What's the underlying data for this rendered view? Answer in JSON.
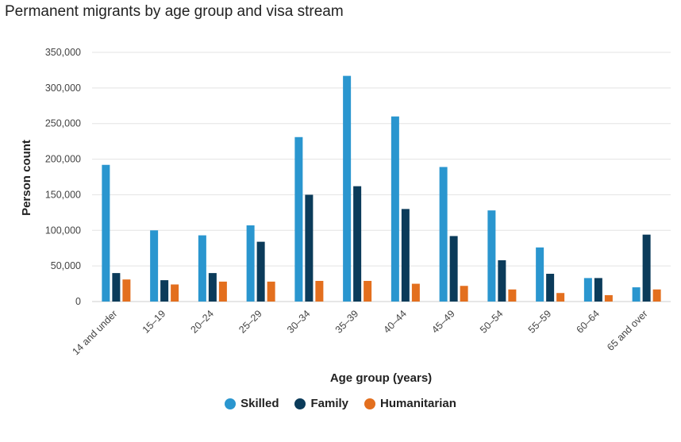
{
  "chart_data": {
    "type": "bar",
    "title": "Permanent migrants by age group and visa stream",
    "xlabel": "Age group (years)",
    "ylabel": "Person count",
    "ylim": [
      0,
      350000
    ],
    "yticks": [
      0,
      50000,
      100000,
      150000,
      200000,
      250000,
      300000,
      350000
    ],
    "ytick_labels": [
      "0",
      "50,000",
      "100,000",
      "150,000",
      "200,000",
      "250,000",
      "300,000",
      "350,000"
    ],
    "grid": true,
    "legend_position": "bottom-center",
    "categories": [
      "14 and under",
      "15–19",
      "20–24",
      "25–29",
      "30–34",
      "35–39",
      "40–44",
      "45–49",
      "50–54",
      "55–59",
      "60–64",
      "65 and over"
    ],
    "series": [
      {
        "name": "Skilled",
        "color": "#2a96cf",
        "values": [
          192000,
          100000,
          93000,
          107000,
          231000,
          317000,
          260000,
          189000,
          128000,
          76000,
          33000,
          20000
        ]
      },
      {
        "name": "Family",
        "color": "#0b3b5a",
        "values": [
          40000,
          30000,
          40000,
          84000,
          150000,
          162000,
          130000,
          92000,
          58000,
          39000,
          33000,
          94000
        ]
      },
      {
        "name": "Humanitarian",
        "color": "#e36f1e",
        "values": [
          31000,
          24000,
          28000,
          28000,
          29000,
          29000,
          25000,
          22000,
          17000,
          12000,
          9000,
          17000
        ]
      }
    ]
  }
}
